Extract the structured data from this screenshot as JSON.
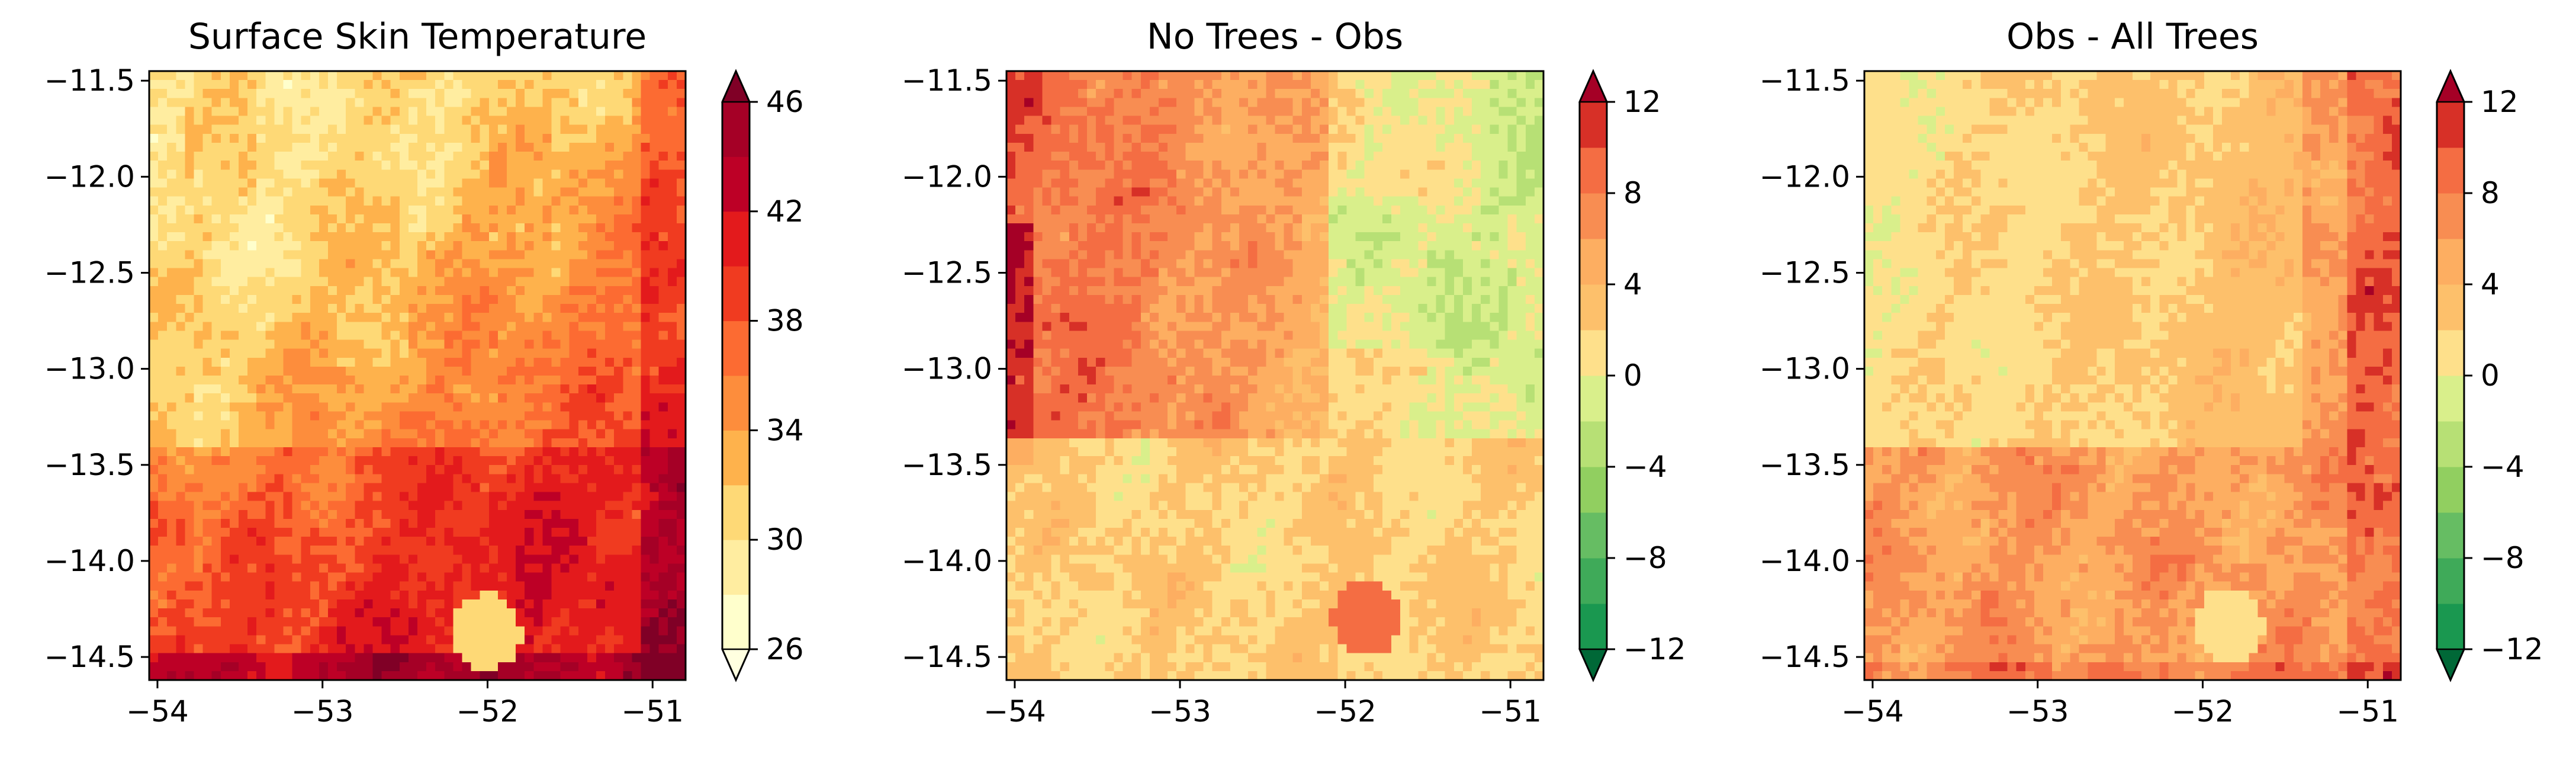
{
  "figure": {
    "background": "#ffffff"
  },
  "chart_data": [
    {
      "type": "heatmap",
      "title": "Surface Skin Temperature",
      "xlabel": "",
      "ylabel": "",
      "xlim": [
        -54.05,
        -50.8
      ],
      "ylim": [
        -14.62,
        -11.45
      ],
      "x_ticks": [
        -54,
        -53,
        -52,
        -51
      ],
      "x_tick_labels": [
        "−54",
        "−53",
        "−52",
        "−51"
      ],
      "y_ticks": [
        -11.5,
        -12.0,
        -12.5,
        -13.0,
        -13.5,
        -14.0,
        -14.5
      ],
      "y_tick_labels": [
        "−11.5",
        "−12.0",
        "−12.5",
        "−13.0",
        "−13.5",
        "−14.0",
        "−14.5"
      ],
      "colorbar": {
        "range": [
          26,
          46
        ],
        "ticks": [
          26,
          30,
          34,
          38,
          42,
          46
        ],
        "tick_labels": [
          "26",
          "30",
          "34",
          "38",
          "42",
          "46"
        ],
        "extend": "both",
        "levels": [
          26,
          28,
          30,
          32,
          34,
          36,
          38,
          40,
          42,
          44,
          46
        ],
        "colors": [
          "#ffffcc",
          "#ffeda0",
          "#fed976",
          "#feb24c",
          "#fd8d3c",
          "#fc6b32",
          "#f03b20",
          "#e31a1c",
          "#bd0026",
          "#a50026"
        ],
        "under_color": "#ffffe0",
        "over_color": "#800026"
      },
      "pattern": "skin"
    },
    {
      "type": "heatmap",
      "title": "No Trees - Obs",
      "xlabel": "",
      "ylabel": "",
      "xlim": [
        -54.05,
        -50.8
      ],
      "ylim": [
        -14.62,
        -11.45
      ],
      "x_ticks": [
        -54,
        -53,
        -52,
        -51
      ],
      "x_tick_labels": [
        "−54",
        "−53",
        "−52",
        "−51"
      ],
      "y_ticks": [
        -11.5,
        -12.0,
        -12.5,
        -13.0,
        -13.5,
        -14.0,
        -14.5
      ],
      "y_tick_labels": [
        "−11.5",
        "−12.0",
        "−12.5",
        "−13.0",
        "−13.5",
        "−14.0",
        "−14.5"
      ],
      "colorbar": {
        "range": [
          -12,
          12
        ],
        "ticks": [
          -12,
          -8,
          -4,
          0,
          4,
          8,
          12
        ],
        "tick_labels": [
          "−12",
          "−8",
          "−4",
          "0",
          "4",
          "8",
          "12"
        ],
        "extend": "both",
        "levels": [
          -12,
          -10,
          -8,
          -6,
          -4,
          -2,
          0,
          2,
          4,
          6,
          8,
          10,
          12
        ],
        "colors": [
          "#1a9850",
          "#3faa59",
          "#66bd63",
          "#91cf60",
          "#b7e075",
          "#d9ef8b",
          "#fee08b",
          "#fdc06b",
          "#fdae61",
          "#f88d52",
          "#f46d43",
          "#d73027"
        ],
        "under_color": "#006837",
        "over_color": "#a50026"
      },
      "pattern": "notrees"
    },
    {
      "type": "heatmap",
      "title": "Obs - All Trees",
      "xlabel": "",
      "ylabel": "",
      "xlim": [
        -54.05,
        -50.8
      ],
      "ylim": [
        -14.62,
        -11.45
      ],
      "x_ticks": [
        -54,
        -53,
        -52,
        -51
      ],
      "x_tick_labels": [
        "−54",
        "−53",
        "−52",
        "−51"
      ],
      "y_ticks": [
        -11.5,
        -12.0,
        -12.5,
        -13.0,
        -13.5,
        -14.0,
        -14.5
      ],
      "y_tick_labels": [
        "−11.5",
        "−12.0",
        "−12.5",
        "−13.0",
        "−13.5",
        "−14.0",
        "−14.5"
      ],
      "colorbar": {
        "range": [
          -12,
          12
        ],
        "ticks": [
          -12,
          -8,
          -4,
          0,
          4,
          8,
          12
        ],
        "tick_labels": [
          "−12",
          "−8",
          "−4",
          "0",
          "4",
          "8",
          "12"
        ],
        "extend": "both",
        "levels": [
          -12,
          -10,
          -8,
          -6,
          -4,
          -2,
          0,
          2,
          4,
          6,
          8,
          10,
          12
        ],
        "colors": [
          "#1a9850",
          "#3faa59",
          "#66bd63",
          "#91cf60",
          "#b7e075",
          "#d9ef8b",
          "#fee08b",
          "#fdc06b",
          "#fdae61",
          "#f88d52",
          "#f46d43",
          "#d73027"
        ],
        "under_color": "#006837",
        "over_color": "#a50026"
      },
      "pattern": "alltrees"
    }
  ]
}
